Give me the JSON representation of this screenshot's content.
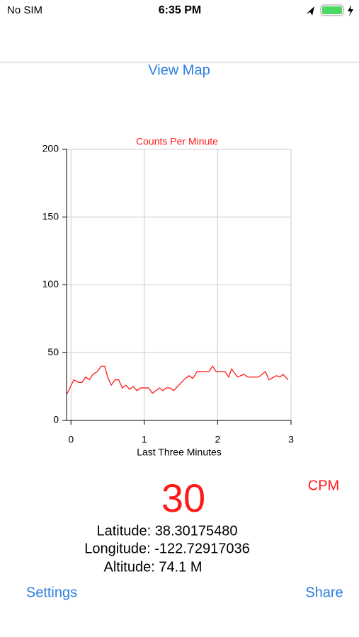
{
  "status_bar": {
    "carrier": "No SIM",
    "time": "6:35 PM"
  },
  "nav": {
    "link": "View Map"
  },
  "chart_data": {
    "type": "line",
    "title": "Counts Per Minute",
    "xlabel": "Last Three Minutes",
    "x": [
      -0.06,
      0.04,
      0.1,
      0.15,
      0.2,
      0.25,
      0.3,
      0.36,
      0.41,
      0.46,
      0.5,
      0.55,
      0.6,
      0.65,
      0.7,
      0.75,
      0.8,
      0.85,
      0.9,
      0.95,
      1.06,
      1.11,
      1.16,
      1.21,
      1.25,
      1.3,
      1.35,
      1.4,
      1.47,
      1.54,
      1.61,
      1.66,
      1.72,
      1.88,
      1.93,
      1.98,
      2.1,
      2.15,
      2.19,
      2.27,
      2.36,
      2.41,
      2.56,
      2.65,
      2.7,
      2.8,
      2.85,
      2.89,
      2.96
    ],
    "values": [
      19,
      30,
      28,
      28,
      32,
      30,
      34,
      36,
      40,
      40,
      32,
      26,
      30,
      30,
      24,
      26,
      23,
      25,
      22,
      24,
      24,
      20,
      22,
      24,
      22,
      24,
      24,
      22,
      26,
      30,
      33,
      31,
      36,
      36,
      40,
      36,
      36,
      32,
      38,
      32,
      34,
      32,
      32,
      36,
      30,
      33,
      32,
      34,
      30
    ],
    "color": "#ff1a1a",
    "xlim": [
      -0.06,
      3
    ],
    "ylim": [
      0,
      200
    ],
    "xticks": [
      0,
      1,
      2,
      3
    ],
    "yticks": [
      0,
      50,
      100,
      150,
      200
    ],
    "grid": true
  },
  "reading": {
    "value": 30,
    "unit": "CPM"
  },
  "location": {
    "latitude": "Latitude: 38.30175480",
    "longitude": "Longitude: -122.72917036",
    "altitude": "Altitude: 74.1 M"
  },
  "toolbar": {
    "left": "Settings",
    "right": "Share"
  }
}
